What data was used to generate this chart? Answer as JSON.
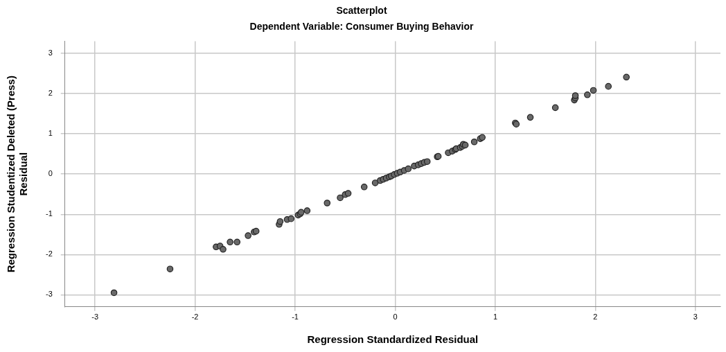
{
  "chart_data": {
    "type": "scatter",
    "title": "Scatterplot",
    "subtitle": "Dependent Variable: Consumer Buying Behavior",
    "xlabel": "Regression Standardized Residual",
    "ylabel": "Regression Studentized Deleted (Press) Residual",
    "x": [
      -2.81,
      -2.25,
      -1.79,
      -1.75,
      -1.72,
      -1.65,
      -1.58,
      -1.47,
      -1.41,
      -1.39,
      -1.16,
      -1.15,
      -1.08,
      -1.04,
      -0.97,
      -0.95,
      -0.94,
      -0.88,
      -0.68,
      -0.55,
      -0.5,
      -0.47,
      -0.31,
      -0.2,
      -0.15,
      -0.12,
      -0.09,
      -0.06,
      -0.04,
      -0.01,
      0.02,
      0.05,
      0.09,
      0.13,
      0.19,
      0.23,
      0.26,
      0.29,
      0.32,
      0.42,
      0.43,
      0.53,
      0.57,
      0.6,
      0.61,
      0.65,
      0.67,
      0.68,
      0.7,
      0.79,
      0.85,
      0.87,
      1.2,
      1.21,
      1.35,
      1.6,
      1.79,
      1.8,
      1.8,
      1.92,
      1.98,
      2.13,
      2.31
    ],
    "series": [
      {
        "color": "#696969",
        "values": [
          -2.95,
          -2.36,
          -1.81,
          -1.79,
          -1.87,
          -1.69,
          -1.69,
          -1.53,
          -1.44,
          -1.42,
          -1.25,
          -1.18,
          -1.13,
          -1.11,
          -1.02,
          -0.99,
          -0.95,
          -0.91,
          -0.72,
          -0.59,
          -0.51,
          -0.48,
          -0.32,
          -0.22,
          -0.16,
          -0.13,
          -0.1,
          -0.07,
          -0.05,
          -0.01,
          0.02,
          0.05,
          0.09,
          0.13,
          0.2,
          0.23,
          0.26,
          0.29,
          0.31,
          0.43,
          0.44,
          0.53,
          0.57,
          0.61,
          0.63,
          0.66,
          0.69,
          0.74,
          0.72,
          0.8,
          0.88,
          0.91,
          1.27,
          1.24,
          1.41,
          1.65,
          1.84,
          1.89,
          1.95,
          1.97,
          2.08,
          2.18,
          2.41
        ]
      }
    ],
    "xlim": [
      -3.3,
      3.25
    ],
    "ylim": [
      -3.3,
      3.3
    ],
    "xticks": [
      -3,
      -2,
      -1,
      0,
      1,
      2,
      3
    ],
    "yticks": [
      -3,
      -2,
      -1,
      0,
      1,
      2,
      3
    ],
    "grid": true,
    "marker": "circle",
    "legend": false
  }
}
